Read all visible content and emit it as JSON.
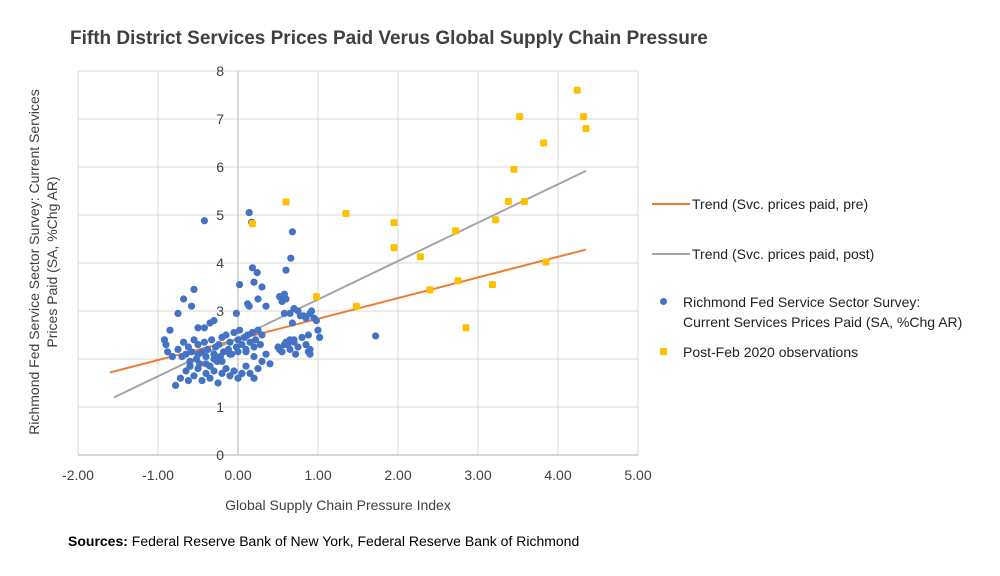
{
  "chart_data": {
    "type": "scatter",
    "title": "Fifth District Services Prices Paid Verus Global Supply Chain Pressure",
    "xlabel": "Global Supply Chain Pressure Index",
    "ylabel": "Richmond Fed Service Sector Survey: Current Services Prices Paid (SA, %Chg AR)",
    "xlim": [
      -2,
      5
    ],
    "ylim": [
      0,
      8
    ],
    "x_ticks": [
      "-2.00",
      "-1.00",
      "0.00",
      "1.00",
      "2.00",
      "3.00",
      "4.00",
      "5.00"
    ],
    "y_ticks": [
      "0",
      "1",
      "2",
      "3",
      "4",
      "5",
      "6",
      "7",
      "8"
    ],
    "grid": true,
    "legend_position": "right",
    "colors": {
      "pre": "#4472c4",
      "post": "#ffc000",
      "trend_pre": "#ed7d31",
      "trend_post": "#a5a5a5"
    },
    "series": [
      {
        "name": "Trend (Svc. prices paid, pre)",
        "kind": "line",
        "color": "#ed7d31",
        "x": [
          -1.6,
          4.35
        ],
        "y": [
          1.72,
          4.28
        ]
      },
      {
        "name": "Trend (Svc. prices paid, post)",
        "kind": "line",
        "color": "#a5a5a5",
        "x": [
          -1.55,
          4.35
        ],
        "y": [
          1.2,
          5.92
        ]
      },
      {
        "name": "Richmond Fed Service Sector Survey: Current Services Prices Paid (SA, %Chg AR)",
        "kind": "points",
        "color": "#4472c4",
        "x": [
          -0.42,
          -0.9,
          -0.88,
          -0.82,
          -0.75,
          -0.68,
          -0.65,
          -0.62,
          -0.6,
          -0.58,
          -0.55,
          -0.52,
          -0.5,
          -0.48,
          -0.45,
          -0.42,
          -0.4,
          -0.38,
          -0.35,
          -0.33,
          -0.3,
          -0.28,
          -0.26,
          -0.24,
          -0.22,
          -0.2,
          -0.18,
          -0.15,
          -0.12,
          -0.1,
          -0.08,
          -0.05,
          -0.02,
          0.0,
          0.02,
          0.05,
          0.08,
          0.1,
          0.12,
          0.15,
          0.18,
          0.2,
          0.22,
          0.25,
          0.28,
          0.3,
          -0.65,
          -0.62,
          -0.6,
          -0.55,
          -0.5,
          -0.45,
          -0.4,
          -0.35,
          -0.3,
          -0.25,
          -0.2,
          -0.15,
          -0.1,
          -0.05,
          0.0,
          0.05,
          0.1,
          0.15,
          0.2,
          0.25,
          -0.7,
          -0.6,
          -0.5,
          -0.4,
          -0.3,
          -0.2,
          -0.1,
          0.0,
          0.1,
          0.2,
          0.3,
          0.35,
          0.4,
          0.5,
          0.55,
          0.6,
          0.62,
          0.65,
          0.7,
          0.72,
          0.75,
          0.8,
          0.85,
          0.88,
          0.9,
          1.0,
          1.02,
          0.52,
          0.55,
          0.58,
          0.68,
          0.75,
          0.82,
          0.9,
          0.95,
          0.6,
          0.65,
          0.7,
          0.78,
          0.85,
          0.92,
          0.98,
          0.52,
          0.58,
          0.65,
          0.7,
          0.88,
          0.9,
          1.72,
          0.14,
          0.17,
          0.68,
          0.66,
          0.58,
          0.6,
          0.3,
          0.24,
          0.25,
          0.35,
          0.02,
          0.12,
          0.14,
          0.18,
          0.2,
          -0.02,
          -0.55,
          -0.42,
          -0.3,
          -0.35,
          -0.58,
          -0.75,
          -0.68,
          -0.85,
          -0.92,
          -0.72,
          -0.78,
          -0.5
        ],
        "y": [
          4.88,
          2.3,
          2.15,
          2.05,
          2.2,
          2.35,
          2.1,
          2.25,
          1.95,
          2.15,
          2.4,
          2.0,
          2.3,
          1.9,
          2.15,
          2.35,
          2.05,
          2.2,
          1.85,
          2.4,
          2.1,
          2.25,
          1.95,
          2.3,
          2.05,
          2.45,
          2.15,
          2.5,
          2.2,
          2.35,
          2.1,
          2.55,
          2.25,
          2.4,
          2.6,
          2.3,
          2.45,
          2.15,
          2.5,
          2.35,
          2.55,
          2.25,
          2.4,
          2.6,
          2.3,
          2.5,
          1.75,
          1.55,
          1.85,
          1.65,
          1.8,
          1.55,
          1.7,
          1.6,
          1.75,
          1.5,
          1.7,
          1.8,
          1.65,
          1.75,
          1.6,
          1.7,
          1.85,
          1.7,
          1.6,
          1.8,
          2.05,
          1.85,
          2.1,
          1.9,
          2.0,
          1.95,
          2.1,
          2.15,
          2.2,
          2.05,
          1.95,
          2.1,
          1.9,
          2.25,
          2.15,
          2.35,
          2.3,
          2.2,
          2.4,
          2.1,
          2.25,
          2.45,
          2.3,
          2.15,
          2.1,
          2.6,
          2.45,
          3.3,
          3.2,
          2.95,
          2.75,
          3.0,
          2.9,
          2.95,
          2.85,
          3.25,
          2.95,
          3.05,
          2.9,
          2.85,
          3.0,
          2.8,
          2.2,
          2.3,
          2.4,
          2.35,
          2.5,
          2.2,
          2.48,
          5.05,
          4.85,
          4.65,
          4.1,
          3.35,
          3.85,
          3.5,
          3.8,
          3.25,
          3.1,
          3.55,
          3.15,
          3.1,
          3.9,
          3.6,
          2.95,
          3.45,
          2.65,
          2.8,
          2.75,
          3.1,
          2.95,
          3.25,
          2.6,
          2.4,
          1.6,
          1.45,
          2.65
        ]
      },
      {
        "name": "Post-Feb 2020 observations",
        "kind": "points",
        "color": "#ffc000",
        "x": [
          0.18,
          0.6,
          1.35,
          1.95,
          1.95,
          2.28,
          2.4,
          2.72,
          2.75,
          2.85,
          3.18,
          3.22,
          3.38,
          3.45,
          3.52,
          3.58,
          3.82,
          3.85,
          4.24,
          4.32,
          4.35,
          0.98,
          1.48
        ],
        "y": [
          4.82,
          5.27,
          5.03,
          4.84,
          4.32,
          4.13,
          3.44,
          4.67,
          3.63,
          2.65,
          3.55,
          4.9,
          5.28,
          5.95,
          7.05,
          5.28,
          6.5,
          4.02,
          7.6,
          7.05,
          6.8,
          3.3,
          3.1
        ]
      }
    ],
    "legend": [
      {
        "label": "Trend (Svc. prices paid, pre)",
        "symbol": "line",
        "color": "#ed7d31"
      },
      {
        "label": "Trend (Svc. prices paid, post)",
        "symbol": "line",
        "color": "#a5a5a5"
      },
      {
        "label_lines": [
          "Richmond Fed Service Sector Survey:",
          "Current Services Prices Paid (SA, %Chg AR)"
        ],
        "symbol": "dot",
        "color": "#4472c4"
      },
      {
        "label": "Post-Feb 2020 observations",
        "symbol": "dot",
        "color": "#ffc000"
      }
    ]
  },
  "sources": {
    "label": "Sources:",
    "text": " Federal Reserve Bank of New York, Federal Reserve Bank of Richmond"
  }
}
